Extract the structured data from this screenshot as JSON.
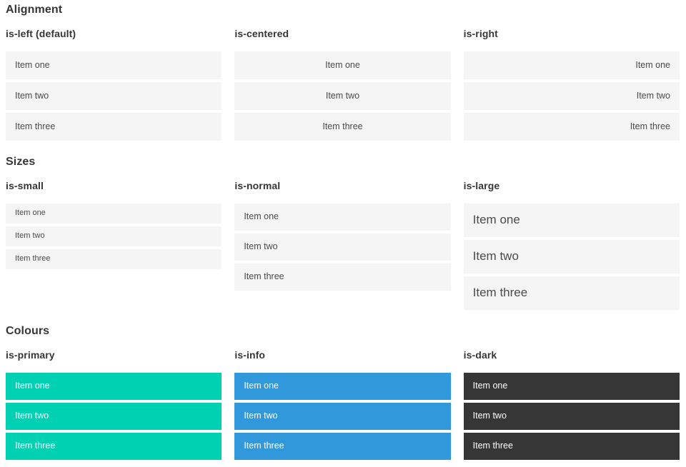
{
  "colors": {
    "heading_text": "#363636",
    "item_bg": "#f5f5f5",
    "item_text": "#4a4a4a",
    "colored_item_text": "#ffffff",
    "primary": "#00d1b2",
    "info": "#3298dc",
    "dark": "#363636"
  },
  "sections": [
    {
      "title": "Alignment",
      "groups": [
        {
          "label": "is-left (default)",
          "variant": "align-left",
          "items": [
            "Item one",
            "Item two",
            "Item three"
          ]
        },
        {
          "label": "is-centered",
          "variant": "align-center",
          "items": [
            "Item one",
            "Item two",
            "Item three"
          ]
        },
        {
          "label": "is-right",
          "variant": "align-right",
          "items": [
            "Item one",
            "Item two",
            "Item three"
          ]
        }
      ]
    },
    {
      "title": "Sizes",
      "groups": [
        {
          "label": "is-small",
          "variant": "size-small",
          "items": [
            "Item one",
            "Item two",
            "Item three"
          ]
        },
        {
          "label": "is-normal",
          "variant": "size-normal",
          "items": [
            "Item one",
            "Item two",
            "Item three"
          ]
        },
        {
          "label": "is-large",
          "variant": "size-large",
          "items": [
            "Item one",
            "Item two",
            "Item three"
          ]
        }
      ]
    },
    {
      "title": "Colours",
      "groups": [
        {
          "label": "is-primary",
          "variant": "color-primary",
          "items": [
            "Item one",
            "Item two",
            "Item three"
          ]
        },
        {
          "label": "is-info",
          "variant": "color-info",
          "items": [
            "Item one",
            "Item two",
            "Item three"
          ]
        },
        {
          "label": "is-dark",
          "variant": "color-dark",
          "items": [
            "Item one",
            "Item two",
            "Item three"
          ]
        }
      ]
    }
  ]
}
